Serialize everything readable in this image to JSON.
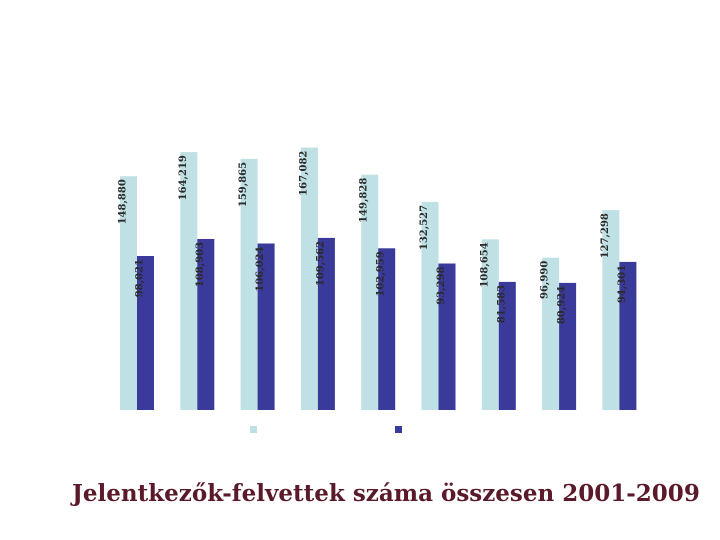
{
  "chart_data": {
    "type": "bar",
    "title": "Jelentkezők-felvettek száma összesen 2001-2009",
    "categories": [
      "",
      "",
      "",
      "",
      "",
      "",
      "",
      "",
      ""
    ],
    "series": [
      {
        "color": "#bfe0e4",
        "values": [
          148880,
          164219,
          159865,
          167082,
          149828,
          132527,
          108654,
          96990,
          127298
        ],
        "labels": [
          "148,880",
          "164,219",
          "159,865",
          "167,082",
          "149,828",
          "132,527",
          "108,654",
          "96,990",
          "127,298"
        ]
      },
      {
        "color": "#3a3a9a",
        "values": [
          98021,
          108903,
          106024,
          109562,
          102959,
          93298,
          81583,
          80924,
          94301
        ],
        "labels": [
          "98,021",
          "108,903",
          "106,024",
          "109,562",
          "102,959",
          "93,298",
          "81,583",
          "80,924",
          "94,301"
        ]
      }
    ],
    "ylim": [
      0,
      170000
    ],
    "grid": false,
    "legend": "bottom"
  }
}
